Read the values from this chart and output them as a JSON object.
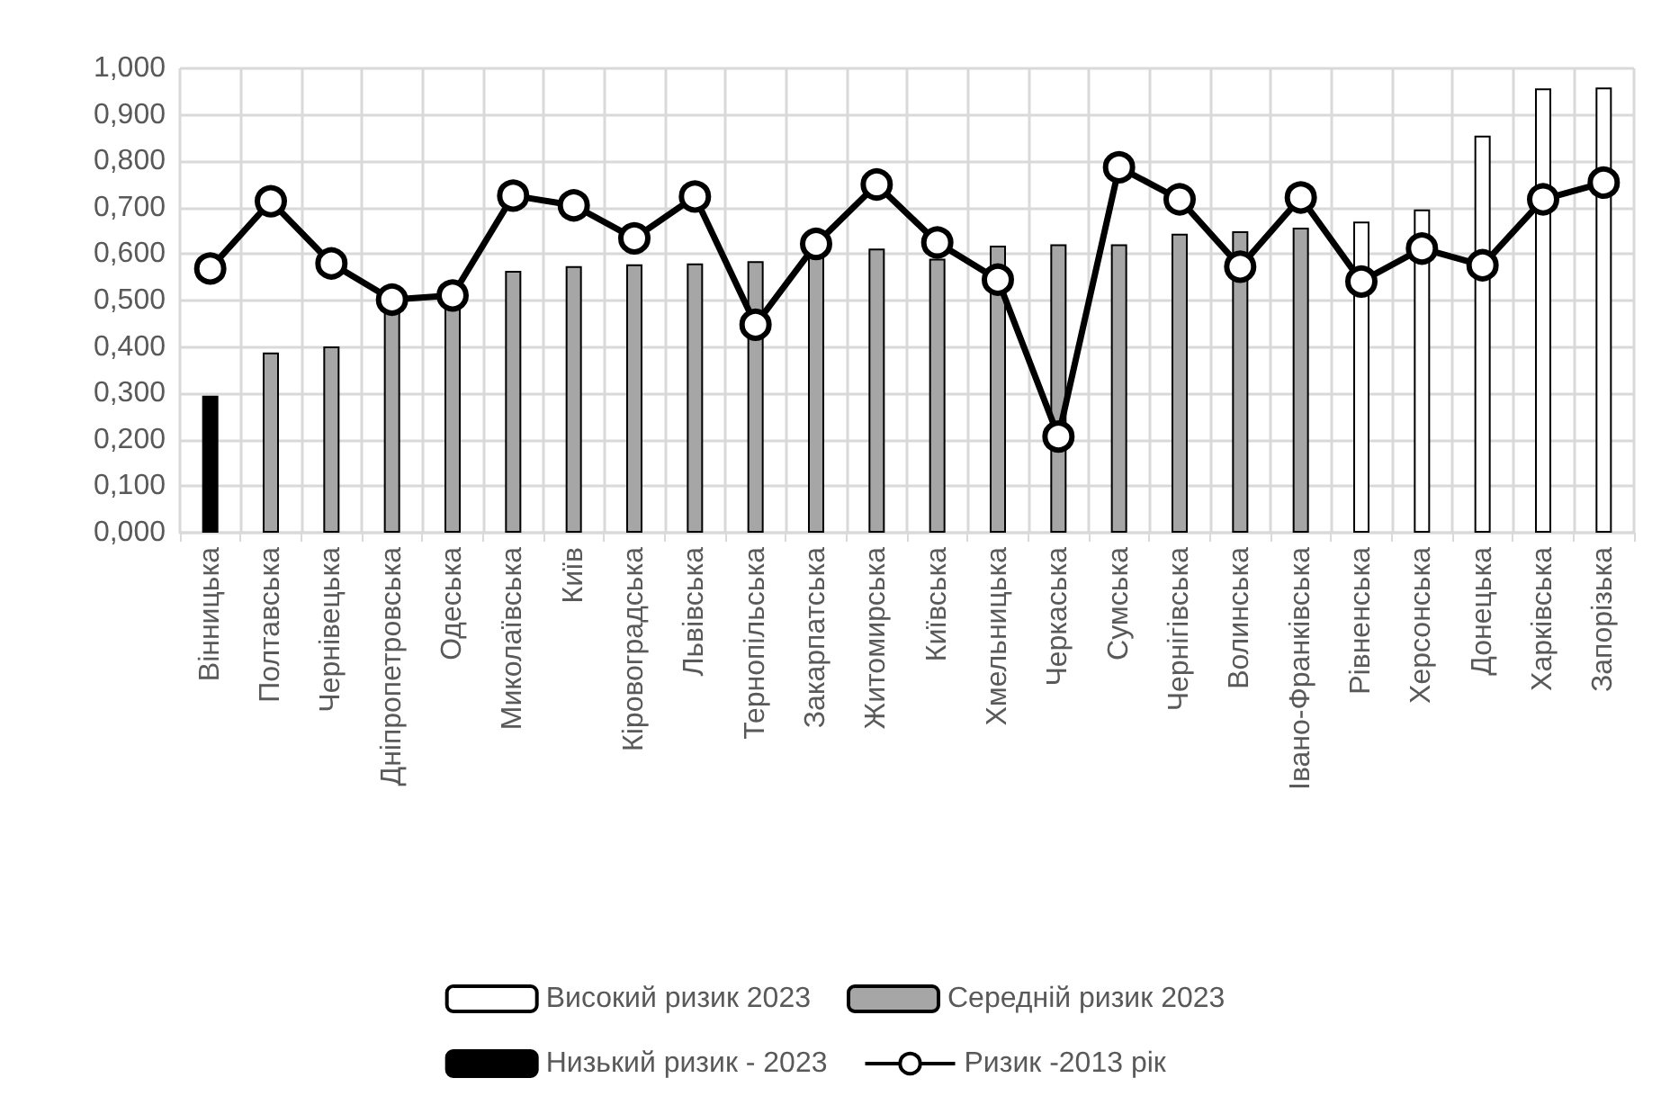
{
  "chart_data": {
    "type": "bar",
    "stacked": true,
    "categories": [
      "Вінницька",
      "Полтавська",
      "Чернівецька",
      "Дніпропетровська",
      "Одеська",
      "Миколаївська",
      "Київ",
      "Кіровоградська",
      "Львівська",
      "Тернопільська",
      "Закарпатська",
      "Житомирська",
      "Київська",
      "Хмельницька",
      "Черкаська",
      "Сумська",
      "Чернігівська",
      "Волинська",
      "Івано-Франківська",
      "Рівненська",
      "Херсонська",
      "Донецька",
      "Харківська",
      "Запорізька"
    ],
    "series": [
      {
        "name": "Високий ризик 2023",
        "color": "#ffffff",
        "values": [
          null,
          null,
          null,
          null,
          null,
          null,
          null,
          null,
          null,
          null,
          null,
          null,
          null,
          null,
          null,
          null,
          null,
          null,
          null,
          0.67,
          0.696,
          0.855,
          0.957,
          0.959
        ]
      },
      {
        "name": "Середній ризик 2023",
        "color": "#a6a6a6",
        "values": [
          null,
          0.388,
          0.401,
          0.48,
          0.49,
          0.564,
          0.574,
          0.578,
          0.58,
          0.585,
          0.595,
          0.612,
          0.59,
          0.618,
          0.621,
          0.621,
          0.644,
          0.649,
          0.657,
          null,
          null,
          null,
          null,
          null
        ]
      },
      {
        "name": "Низький ризик - 2023",
        "color": "#000000",
        "values": [
          0.295,
          null,
          null,
          null,
          null,
          null,
          null,
          null,
          null,
          null,
          null,
          null,
          null,
          null,
          null,
          null,
          null,
          null,
          null,
          null,
          null,
          null,
          null,
          null
        ]
      },
      {
        "name": "Ризик -2013 рік",
        "type": "line",
        "color": "#000000",
        "marker": "circle",
        "values": [
          0.569,
          0.714,
          0.58,
          0.502,
          0.511,
          0.726,
          0.705,
          0.634,
          0.724,
          0.448,
          0.622,
          0.75,
          0.625,
          0.545,
          0.207,
          0.787,
          0.718,
          0.573,
          0.722,
          0.541,
          0.612,
          0.576,
          0.718,
          0.754
        ]
      }
    ],
    "ylim": [
      0,
      1
    ],
    "yticks": [
      {
        "value": 0,
        "label": "0,000"
      },
      {
        "value": 0.1,
        "label": "0,100"
      },
      {
        "value": 0.2,
        "label": "0,200"
      },
      {
        "value": 0.3,
        "label": "0,300"
      },
      {
        "value": 0.4,
        "label": "0,400"
      },
      {
        "value": 0.5,
        "label": "0,500"
      },
      {
        "value": 0.6,
        "label": "0,600"
      },
      {
        "value": 0.7,
        "label": "0,700"
      },
      {
        "value": 0.8,
        "label": "0,800"
      },
      {
        "value": 0.9,
        "label": "0,900"
      },
      {
        "value": 1,
        "label": "1,000"
      }
    ],
    "grid": true,
    "legend": "bottom"
  }
}
